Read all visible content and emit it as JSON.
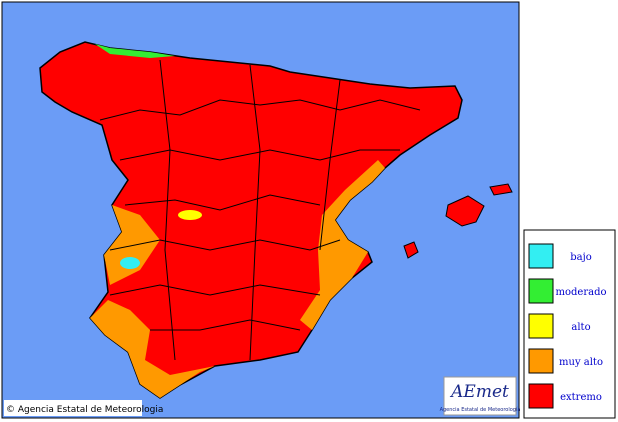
{
  "legend": [
    {
      "label": "bajo",
      "color": "#33eef2"
    },
    {
      "label": "moderado",
      "color": "#33ee33"
    },
    {
      "label": "alto",
      "color": "#ffff00"
    },
    {
      "label": "muy alto",
      "color": "#ff9900"
    },
    {
      "label": "extremo",
      "color": "#ff0000"
    }
  ],
  "credit": "© Agencia Estatal de Meteorologia",
  "logo": {
    "name": "AEmet",
    "subtitle": "Agencia Estatal de Meteorología"
  }
}
